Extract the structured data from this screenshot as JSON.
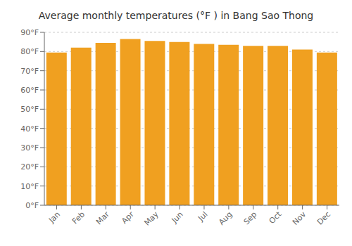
{
  "chart_data": {
    "type": "bar",
    "title": "Average monthly temperatures (°F ) in Bang Sao Thong",
    "categories": [
      "Jan",
      "Feb",
      "Mar",
      "Apr",
      "May",
      "Jun",
      "Jul",
      "Aug",
      "Sep",
      "Oct",
      "Nov",
      "Dec"
    ],
    "values": [
      79.5,
      82.0,
      84.5,
      86.5,
      85.5,
      85.0,
      84.0,
      83.5,
      83.0,
      83.0,
      81.0,
      79.5
    ],
    "color": "#F0A020",
    "ylim": [
      0,
      90
    ],
    "yticks": [
      {
        "value": 0,
        "label": "0°F"
      },
      {
        "value": 10,
        "label": "10°F"
      },
      {
        "value": 20,
        "label": "20°F"
      },
      {
        "value": 30,
        "label": "30°F"
      },
      {
        "value": 40,
        "label": "40°F"
      },
      {
        "value": 50,
        "label": "50°F"
      },
      {
        "value": 60,
        "label": "60°F"
      },
      {
        "value": 70,
        "label": "70°F"
      },
      {
        "value": 80,
        "label": "80°F"
      },
      {
        "value": 90,
        "label": "90°F"
      }
    ],
    "grid": true
  }
}
